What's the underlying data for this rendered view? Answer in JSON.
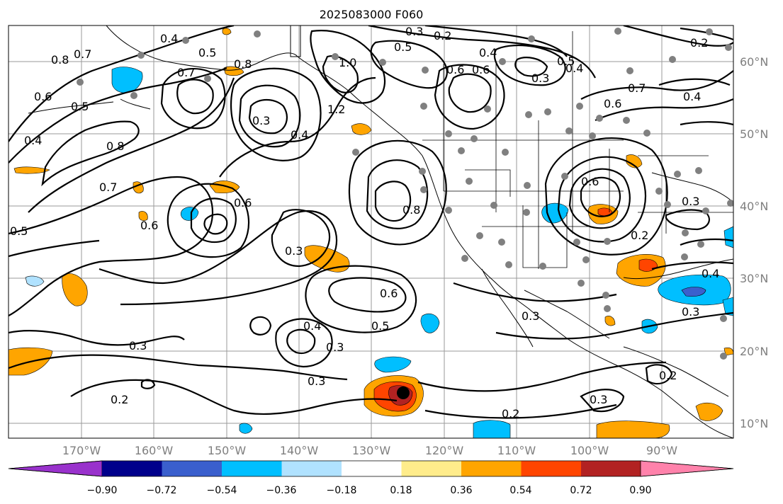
{
  "title": "2025083000 F060",
  "longitude_labels": [
    "170°W",
    "160°W",
    "150°W",
    "140°W",
    "130°W",
    "120°W",
    "110°W",
    "100°W",
    "90°W"
  ],
  "latitude_labels": [
    "60°N",
    "50°N",
    "40°N",
    "30°N",
    "20°N",
    "10°N"
  ],
  "contour_labels": [
    {
      "text": "0.8"
    },
    {
      "text": "0.7"
    },
    {
      "text": "0.6"
    },
    {
      "text": "0.5"
    },
    {
      "text": "0.4"
    },
    {
      "text": "0.4"
    },
    {
      "text": "0.5"
    },
    {
      "text": "0.7"
    },
    {
      "text": "0.8"
    },
    {
      "text": "0.3"
    },
    {
      "text": "1.0"
    },
    {
      "text": "1.2"
    },
    {
      "text": "0.4"
    },
    {
      "text": "0.8"
    },
    {
      "text": "0.7"
    },
    {
      "text": "0.6"
    },
    {
      "text": "0.6"
    },
    {
      "text": "0.3"
    },
    {
      "text": "0.5"
    },
    {
      "text": "0.6"
    },
    {
      "text": "0.5"
    },
    {
      "text": "0.4"
    },
    {
      "text": "0.3"
    },
    {
      "text": "0.3"
    },
    {
      "text": "0.2"
    },
    {
      "text": "0.3"
    },
    {
      "text": "0.2"
    },
    {
      "text": "0.2"
    },
    {
      "text": "0.3"
    },
    {
      "text": "0.3"
    },
    {
      "text": "0.2"
    },
    {
      "text": "0.3"
    },
    {
      "text": "0.5"
    },
    {
      "text": "0.2"
    },
    {
      "text": "0.7"
    },
    {
      "text": "0.4"
    },
    {
      "text": "0.6"
    },
    {
      "text": "0.6"
    },
    {
      "text": "0.4"
    },
    {
      "text": "0.3"
    },
    {
      "text": "0.2"
    },
    {
      "text": "0.3"
    },
    {
      "text": "0.3"
    },
    {
      "text": "0.6"
    },
    {
      "text": "0.6"
    },
    {
      "text": "0.4"
    },
    {
      "text": "0.8"
    },
    {
      "text": "0.5"
    },
    {
      "text": "0.4"
    }
  ],
  "colorbar": {
    "tick_labels": [
      "−0.90",
      "−0.72",
      "−0.54",
      "−0.36",
      "−0.18",
      "0.18",
      "0.36",
      "0.54",
      "0.72",
      "0.90"
    ],
    "colors": [
      "#9932cc",
      "#00008b",
      "#3a5fcd",
      "#00bfff",
      "#b0e2ff",
      "#ffffff",
      "#ffec8b",
      "#ffa500",
      "#ff4500",
      "#b22222",
      "#ff82ab"
    ]
  },
  "colors": {
    "grid": "#9a9a9a",
    "station": "#808080",
    "label": "#7f7f7f"
  }
}
